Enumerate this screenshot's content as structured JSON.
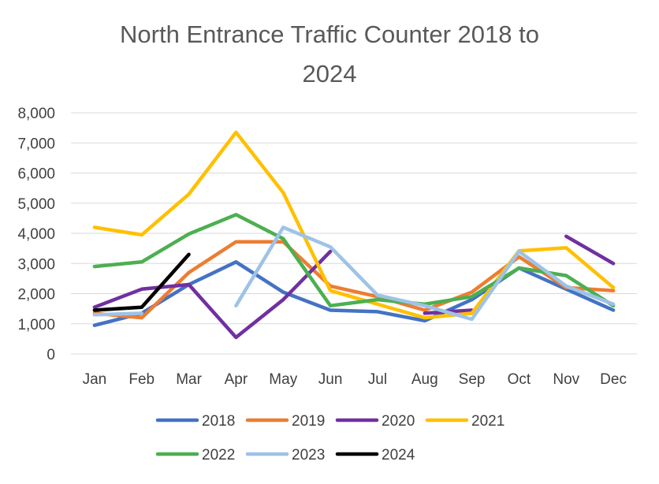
{
  "chart_data": {
    "type": "line",
    "title": "North Entrance Traffic Counter 2018 to 2024",
    "title_lines": [
      "North Entrance Traffic Counter 2018 to",
      "2024"
    ],
    "xlabel": "",
    "ylabel": "",
    "ylim": [
      0,
      8000
    ],
    "yticks": [
      0,
      1000,
      2000,
      3000,
      4000,
      5000,
      6000,
      7000,
      8000
    ],
    "ytick_labels": [
      "0",
      "1,000",
      "2,000",
      "3,000",
      "4,000",
      "5,000",
      "6,000",
      "7,000",
      "8,000"
    ],
    "categories": [
      "Jan",
      "Feb",
      "Mar",
      "Apr",
      "May",
      "Jun",
      "Jul",
      "Aug",
      "Sep",
      "Oct",
      "Nov",
      "Dec"
    ],
    "grid": true,
    "legend_position": "bottom",
    "series": [
      {
        "name": "2018",
        "color": "#4472C4",
        "values": [
          950,
          1350,
          2300,
          3050,
          2050,
          1450,
          1400,
          1100,
          1800,
          2850,
          2150,
          1450
        ]
      },
      {
        "name": "2019",
        "color": "#ED7D31",
        "values": [
          1350,
          1200,
          2700,
          3720,
          3720,
          2250,
          1900,
          1450,
          2050,
          3220,
          2200,
          2100
        ]
      },
      {
        "name": "2020",
        "color": "#7030A0",
        "values": [
          1550,
          2150,
          2300,
          550,
          1800,
          3400,
          null,
          1350,
          1450,
          null,
          3900,
          3000
        ]
      },
      {
        "name": "2021",
        "color": "#FFC000",
        "values": [
          4200,
          3950,
          5300,
          7350,
          5350,
          2100,
          1650,
          1200,
          1350,
          3420,
          3520,
          2200
        ]
      },
      {
        "name": "2022",
        "color": "#4CAF50",
        "values": [
          2900,
          3050,
          3980,
          4620,
          3820,
          1600,
          1800,
          1650,
          1900,
          2850,
          2600,
          1600
        ]
      },
      {
        "name": "2023",
        "color": "#9DC3E6",
        "values": [
          1300,
          1350,
          null,
          1600,
          4200,
          3550,
          1950,
          1600,
          1150,
          3400,
          2250,
          1650
        ]
      },
      {
        "name": "2024",
        "color": "#000000",
        "values": [
          1450,
          1550,
          3300,
          null,
          null,
          null,
          null,
          null,
          null,
          null,
          null,
          null
        ]
      }
    ]
  }
}
